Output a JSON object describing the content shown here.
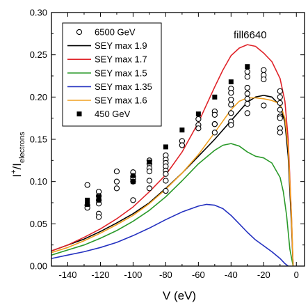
{
  "chart_data": {
    "type": "scatter",
    "title": "",
    "annotation": "fill6640",
    "xlabel": "V (eV)",
    "ylabel": "I+/Ielectrons",
    "ylabel_parts": {
      "main": "I",
      "sup": "+",
      "slash": "/I",
      "sub": "electrons"
    },
    "xlim": [
      -150,
      5
    ],
    "ylim": [
      0,
      0.3
    ],
    "xticks": [
      -140,
      -120,
      -100,
      -80,
      -60,
      -40,
      -20,
      0
    ],
    "yticks": [
      0.0,
      0.05,
      0.1,
      0.15,
      0.2,
      0.25,
      0.3
    ],
    "ytick_labels": [
      "0.00",
      "0.05",
      "0.10",
      "0.15",
      "0.20",
      "0.25",
      "0.30"
    ],
    "legend_position": "top-left",
    "series": [
      {
        "name": "6500 GeV",
        "kind": "scatter",
        "marker": "open-circle",
        "color": "#000000",
        "x": [
          -128,
          -128,
          -128,
          -121,
          -121,
          -121,
          -121,
          -121,
          -121,
          -110,
          -110,
          -110,
          -100,
          -100,
          -100,
          -100,
          -100,
          -90,
          -90,
          -90,
          -90,
          -90,
          -90,
          -80,
          -80,
          -80,
          -80,
          -80,
          -80,
          -80,
          -80,
          -70,
          -70,
          -60,
          -60,
          -60,
          -50,
          -50,
          -50,
          -50,
          -50,
          -40,
          -40,
          -40,
          -40,
          -40,
          -40,
          -40,
          -30,
          -30,
          -30,
          -30,
          -30,
          -30,
          -30,
          -20,
          -20,
          -20,
          -20,
          -10,
          -10,
          -10,
          -10,
          -10,
          -10,
          -10,
          -10
        ],
        "y": [
          0.096,
          0.072,
          0.069,
          0.088,
          0.083,
          0.078,
          0.074,
          0.062,
          0.058,
          0.1,
          0.092,
          0.112,
          0.111,
          0.106,
          0.103,
          0.1,
          0.078,
          0.125,
          0.121,
          0.116,
          0.112,
          0.101,
          0.092,
          0.131,
          0.126,
          0.122,
          0.118,
          0.113,
          0.109,
          0.101,
          0.089,
          0.148,
          0.143,
          0.174,
          0.167,
          0.163,
          0.183,
          0.179,
          0.168,
          0.158,
          0.168,
          0.21,
          0.205,
          0.197,
          0.191,
          0.181,
          0.171,
          0.167,
          0.23,
          0.224,
          0.211,
          0.204,
          0.198,
          0.192,
          0.181,
          0.232,
          0.226,
          0.221,
          0.19,
          0.207,
          0.2,
          0.193,
          0.185,
          0.177,
          0.163,
          0.158,
          0.175
        ]
      },
      {
        "name": "SEY max 1.9",
        "kind": "line",
        "color": "#000000",
        "x": [
          -150,
          -140,
          -130,
          -120,
          -110,
          -100,
          -90,
          -80,
          -70,
          -60,
          -50,
          -40,
          -30,
          -25,
          -20,
          -15,
          -10,
          -7,
          -5,
          -3,
          -2
        ],
        "y": [
          0.018,
          0.025,
          0.032,
          0.041,
          0.051,
          0.062,
          0.075,
          0.092,
          0.11,
          0.13,
          0.15,
          0.172,
          0.194,
          0.2,
          0.202,
          0.2,
          0.19,
          0.17,
          0.13,
          0.05,
          0.0
        ]
      },
      {
        "name": "SEY max 1.7",
        "kind": "line",
        "color": "#e0242a",
        "x": [
          -150,
          -140,
          -130,
          -120,
          -110,
          -100,
          -90,
          -80,
          -70,
          -60,
          -50,
          -45,
          -40,
          -35,
          -30,
          -25,
          -20,
          -15,
          -10,
          -7,
          -5,
          -3,
          -2
        ],
        "y": [
          0.018,
          0.025,
          0.034,
          0.044,
          0.056,
          0.07,
          0.088,
          0.108,
          0.135,
          0.17,
          0.212,
          0.232,
          0.249,
          0.258,
          0.262,
          0.26,
          0.252,
          0.242,
          0.222,
          0.195,
          0.15,
          0.06,
          0.0
        ]
      },
      {
        "name": "SEY max 1.5",
        "kind": "line",
        "color": "#2a9a2a",
        "x": [
          -150,
          -140,
          -130,
          -120,
          -110,
          -100,
          -90,
          -80,
          -70,
          -60,
          -50,
          -45,
          -40,
          -35,
          -30,
          -25,
          -20,
          -15,
          -10,
          -8,
          -6,
          -4,
          -2
        ],
        "y": [
          0.013,
          0.019,
          0.025,
          0.033,
          0.042,
          0.053,
          0.066,
          0.082,
          0.101,
          0.121,
          0.137,
          0.143,
          0.145,
          0.142,
          0.135,
          0.13,
          0.128,
          0.122,
          0.105,
          0.088,
          0.06,
          0.02,
          0.0
        ]
      },
      {
        "name": "SEY max 1.35",
        "kind": "line",
        "color": "#2431c0",
        "x": [
          -150,
          -140,
          -130,
          -120,
          -110,
          -100,
          -90,
          -80,
          -70,
          -60,
          -55,
          -50,
          -45,
          -40,
          -35,
          -30,
          -25,
          -20,
          -15,
          -10,
          -7,
          -5
        ],
        "y": [
          0.009,
          0.013,
          0.017,
          0.022,
          0.028,
          0.036,
          0.045,
          0.055,
          0.064,
          0.071,
          0.073,
          0.072,
          0.068,
          0.06,
          0.05,
          0.04,
          0.031,
          0.024,
          0.017,
          0.009,
          0.003,
          0.0
        ]
      },
      {
        "name": "SEY max 1.6",
        "kind": "line",
        "color": "#f0a020",
        "x": [
          -150,
          -140,
          -130,
          -120,
          -110,
          -100,
          -90,
          -80,
          -70,
          -60,
          -50,
          -40,
          -35,
          -30,
          -25,
          -20,
          -15,
          -10,
          -7,
          -5,
          -3,
          -2
        ],
        "y": [
          0.016,
          0.022,
          0.03,
          0.039,
          0.049,
          0.06,
          0.074,
          0.091,
          0.11,
          0.132,
          0.158,
          0.185,
          0.195,
          0.199,
          0.199,
          0.198,
          0.196,
          0.192,
          0.175,
          0.14,
          0.06,
          0.0
        ]
      },
      {
        "name": "450 GeV",
        "kind": "scatter",
        "marker": "filled-square",
        "color": "#000000",
        "x": [
          -128,
          -128,
          -121,
          -121,
          -100,
          -100,
          -90,
          -80,
          -70,
          -60,
          -50,
          -40,
          -30
        ],
        "y": [
          0.078,
          0.073,
          0.082,
          0.078,
          0.107,
          0.1,
          0.123,
          0.141,
          0.161,
          0.18,
          0.2,
          0.218,
          0.236
        ]
      }
    ]
  }
}
